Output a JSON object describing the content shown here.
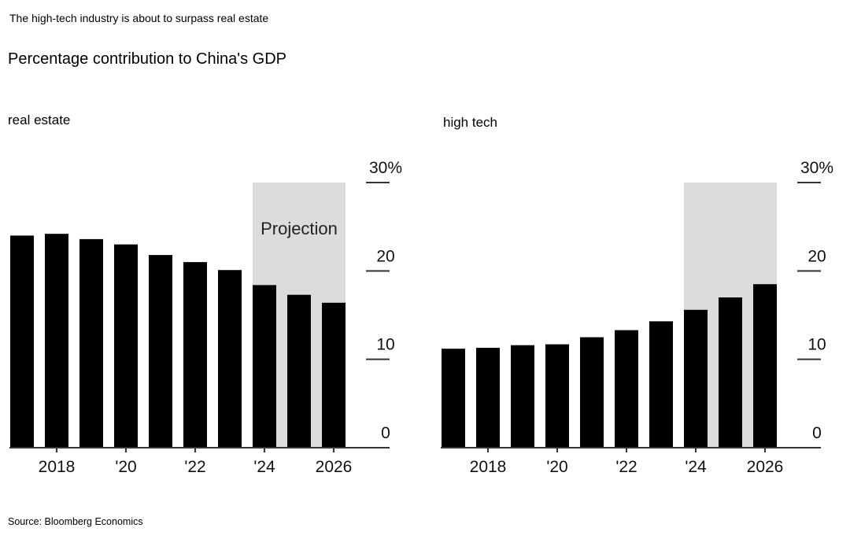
{
  "header": {
    "headline": "The high-tech industry is about to surpass real estate",
    "subtitle": "Percentage contribution to China's GDP"
  },
  "footer": {
    "source": "Source: Bloomberg Economics"
  },
  "colors": {
    "bar": "#000000",
    "projection": "#dcdcdc",
    "axis": "#333333"
  },
  "chart_data": [
    {
      "type": "bar",
      "title": "real estate",
      "x": [
        2017,
        2018,
        2019,
        2020,
        2021,
        2022,
        2023,
        2024,
        2025,
        2026
      ],
      "values": [
        24,
        24.2,
        23.6,
        23,
        21.8,
        21,
        20.1,
        18.4,
        17.3,
        16.4
      ],
      "x_tick_labels": [
        "2018",
        "'20",
        "'22",
        "'24",
        "2026"
      ],
      "x_tick_values": [
        2018,
        2020,
        2022,
        2024,
        2026
      ],
      "y_tick_labels": [
        "0",
        "10",
        "20",
        "30%"
      ],
      "y_tick_values": [
        0,
        10,
        20,
        30
      ],
      "ylim": [
        0,
        30
      ],
      "projection": {
        "from": 2024,
        "to": 2026,
        "label": "Projection"
      }
    },
    {
      "type": "bar",
      "title": "high tech",
      "x": [
        2017,
        2018,
        2019,
        2020,
        2021,
        2022,
        2023,
        2024,
        2025,
        2026
      ],
      "values": [
        11.2,
        11.3,
        11.6,
        11.7,
        12.5,
        13.3,
        14.3,
        15.6,
        17,
        18.5
      ],
      "x_tick_labels": [
        "2018",
        "'20",
        "'22",
        "'24",
        "2026"
      ],
      "x_tick_values": [
        2018,
        2020,
        2022,
        2024,
        2026
      ],
      "y_tick_labels": [
        "0",
        "10",
        "20",
        "30%"
      ],
      "y_tick_values": [
        0,
        10,
        20,
        30
      ],
      "ylim": [
        0,
        30
      ],
      "projection": {
        "from": 2024,
        "to": 2026,
        "label": ""
      }
    }
  ]
}
